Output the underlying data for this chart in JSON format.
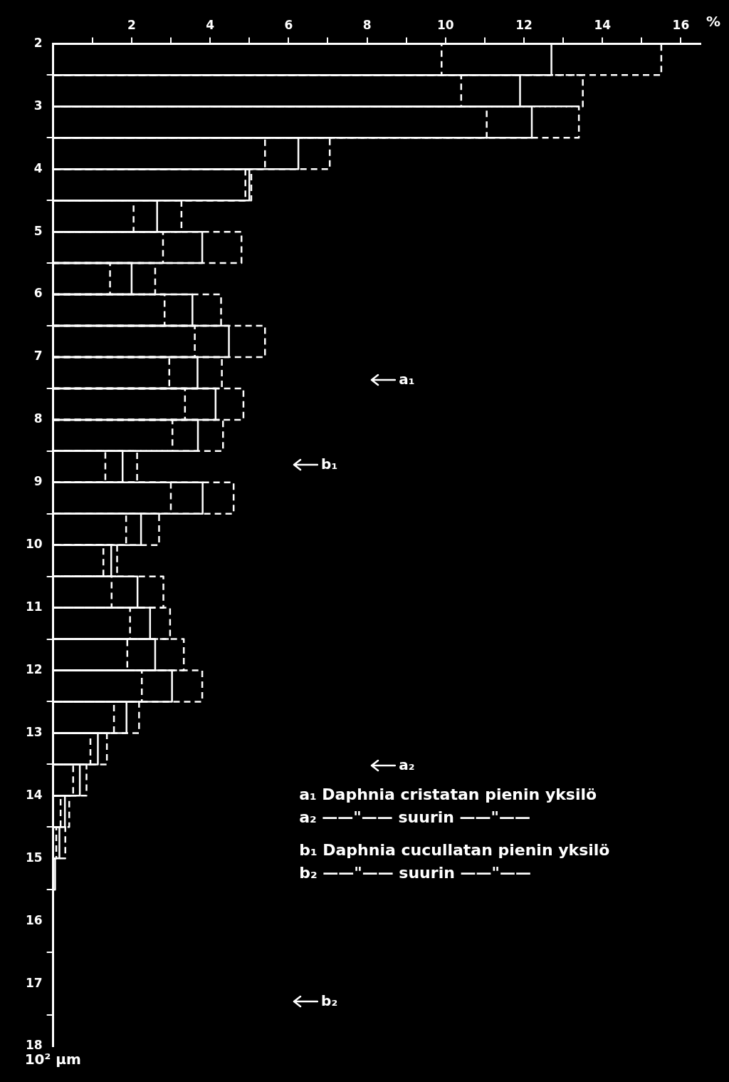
{
  "chart_data": {
    "type": "histogram",
    "orientation": "horizontal",
    "xlabel": "%",
    "ylabel": "10² µm",
    "bins": [
      2,
      2.5,
      3,
      3.5,
      4,
      4.5,
      5,
      5.5,
      6,
      6.5,
      7,
      7.5,
      8,
      8.5,
      9,
      9.5,
      10,
      10.5,
      11,
      11.5,
      12,
      12.5,
      13,
      13.5,
      14,
      14.5,
      15,
      15.5
    ],
    "series": [
      {
        "color": "#ffffff",
        "line_style": "dashed",
        "values": [
          15.5,
          13.5,
          13.4,
          7.05,
          5.05,
          3.27,
          4.8,
          2.6,
          4.28,
          5.4,
          4.3,
          4.85,
          4.33,
          2.14,
          4.6,
          2.7,
          1.63,
          2.81,
          2.98,
          3.33,
          3.8,
          2.19,
          1.37,
          0.85,
          0.41,
          0.31,
          null
        ]
      },
      {
        "color": "#ffffff",
        "line_style": "solid",
        "values": [
          12.7,
          11.9,
          12.2,
          6.25,
          5.0,
          2.65,
          3.8,
          2.0,
          3.55,
          4.48,
          3.68,
          4.14,
          3.69,
          1.77,
          3.81,
          2.24,
          1.48,
          2.15,
          2.47,
          2.6,
          3.03,
          1.87,
          1.14,
          0.68,
          0.3,
          0.16,
          0.05
        ]
      },
      {
        "color": "#ffffff",
        "line_style": "dashed",
        "values": [
          9.9,
          10.4,
          11.05,
          5.4,
          4.9,
          2.05,
          2.8,
          1.45,
          2.84,
          3.61,
          2.96,
          3.36,
          3.04,
          1.33,
          3.0,
          1.86,
          1.28,
          1.49,
          1.96,
          1.89,
          2.26,
          1.55,
          0.95,
          0.51,
          0.19,
          0.08,
          null
        ]
      }
    ],
    "xlim": [
      0,
      16.5
    ],
    "xticks": [
      {
        "value": 1,
        "label": null
      },
      2,
      {
        "value": 3,
        "label": null
      },
      4,
      {
        "value": 5,
        "label": null
      },
      6,
      {
        "value": 7,
        "label": null
      },
      8,
      {
        "value": 9,
        "label": null
      },
      10,
      {
        "value": 11,
        "label": null
      },
      12,
      {
        "value": 13,
        "label": null
      },
      14,
      {
        "value": 15,
        "label": null
      },
      16
    ],
    "ylim": [
      18,
      2
    ],
    "yticks": [
      2,
      3,
      4,
      5,
      6,
      7,
      8,
      9,
      10,
      11,
      12,
      13,
      14,
      15,
      16,
      17,
      18
    ],
    "annotations": [
      "a₁",
      "b₁",
      "a₂",
      "b₂",
      "a₁  Daphnia cristatan pienin yksilö",
      "a₂  ——\"—— suurin ——\"——",
      "b₁  Daphnia cucullatan pienin yksilö",
      "b₂  ——\"—— suurin ——\"——"
    ]
  }
}
